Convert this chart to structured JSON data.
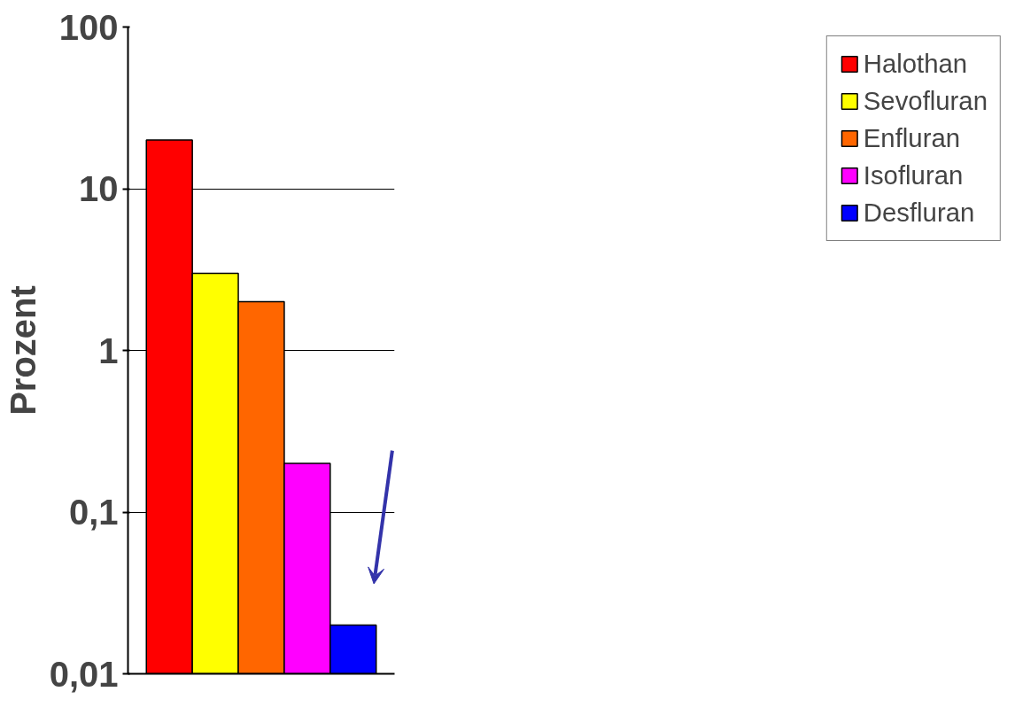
{
  "chart_data": {
    "type": "bar",
    "ylabel": "Prozent",
    "log": "y",
    "categories": [
      null,
      null,
      null,
      null,
      null
    ],
    "series": [
      {
        "name": "Halothan",
        "color": "#ff0000",
        "values": [
          20,
          null,
          null,
          null,
          null
        ]
      },
      {
        "name": "Sevofluran",
        "color": "#ffff00",
        "values": [
          null,
          3,
          null,
          null,
          null
        ]
      },
      {
        "name": "Enfluran",
        "color": "#ff6600",
        "values": [
          null,
          null,
          2,
          null,
          null
        ]
      },
      {
        "name": "Isofluran",
        "color": "#ff00ff",
        "values": [
          null,
          null,
          null,
          0.2,
          null
        ]
      },
      {
        "name": "Desfluran",
        "color": "#0000ff",
        "values": [
          null,
          null,
          null,
          null,
          0.02
        ]
      }
    ],
    "ylim": [
      0.01,
      100
    ],
    "yticks": [
      {
        "value": 0.01,
        "label": "0,01"
      },
      {
        "value": 0.1,
        "label": "0,1"
      },
      1,
      10,
      100
    ],
    "grid": "y",
    "legend": "right",
    "tick_labels": "y"
  }
}
